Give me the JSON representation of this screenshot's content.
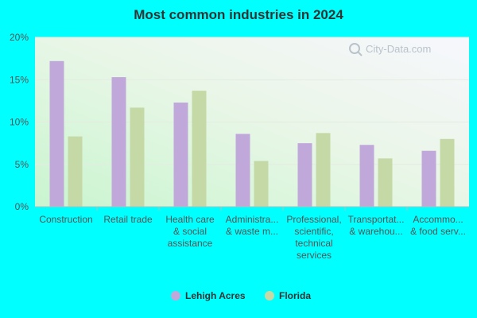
{
  "chart_data": {
    "type": "bar",
    "title": "Most common industries in 2024",
    "categories": [
      [
        "Construction"
      ],
      [
        "Retail trade"
      ],
      [
        "Health care",
        "& social",
        "assistance"
      ],
      [
        "Administra...",
        "& waste m..."
      ],
      [
        "Professional,",
        "scientific,",
        "technical",
        "services"
      ],
      [
        "Transportat...",
        "& warehou..."
      ],
      [
        "Accommo...",
        "& food serv..."
      ]
    ],
    "series": [
      {
        "name": "Lehigh Acres",
        "color": "#c0a9da",
        "values": [
          17.2,
          15.3,
          12.3,
          8.6,
          7.5,
          7.3,
          6.6
        ]
      },
      {
        "name": "Florida",
        "color": "#c5d9a7",
        "values": [
          8.3,
          11.7,
          13.7,
          5.4,
          8.7,
          5.7,
          8.0
        ]
      }
    ],
    "yticks": [
      "0%",
      "5%",
      "10%",
      "15%",
      "20%"
    ],
    "ylim": [
      0,
      20
    ],
    "grid": true,
    "legend_position": "bottom",
    "watermark": "City-Data.com"
  }
}
